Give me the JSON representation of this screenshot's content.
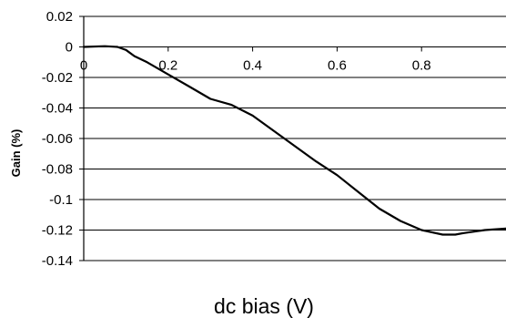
{
  "chart_data": {
    "type": "line",
    "title": "",
    "xlabel": "dc bias (V)",
    "ylabel": "Gain (%)",
    "xlim": [
      0,
      1.0
    ],
    "ylim": [
      -0.14,
      0.02
    ],
    "x_ticks": [
      0,
      0.2,
      0.4,
      0.6,
      0.8
    ],
    "x_tick_labels": [
      "0",
      "0.2",
      "0.4",
      "0.6",
      "0.8"
    ],
    "y_ticks": [
      0.02,
      0,
      -0.02,
      -0.04,
      -0.06,
      -0.08,
      -0.1,
      -0.12,
      -0.14
    ],
    "y_tick_labels": [
      "0.02",
      "0",
      "-0.02",
      "-0.04",
      "-0.06",
      "-0.08",
      "-0.1",
      "-0.12",
      "-0.14"
    ],
    "grid": "horizontal",
    "legend": "none",
    "line_color": "#000000",
    "series": [
      {
        "x": [
          0,
          0.05,
          0.08,
          0.1,
          0.12,
          0.15,
          0.2,
          0.25,
          0.3,
          0.35,
          0.4,
          0.45,
          0.5,
          0.55,
          0.6,
          0.65,
          0.7,
          0.75,
          0.8,
          0.85,
          0.88,
          0.9,
          0.95,
          1.0
        ],
        "y": [
          0,
          0.0005,
          0,
          -0.002,
          -0.006,
          -0.01,
          -0.018,
          -0.026,
          -0.034,
          -0.038,
          -0.045,
          -0.055,
          -0.065,
          -0.075,
          -0.084,
          -0.095,
          -0.106,
          -0.114,
          -0.12,
          -0.123,
          -0.123,
          -0.122,
          -0.12,
          -0.119
        ]
      }
    ]
  }
}
